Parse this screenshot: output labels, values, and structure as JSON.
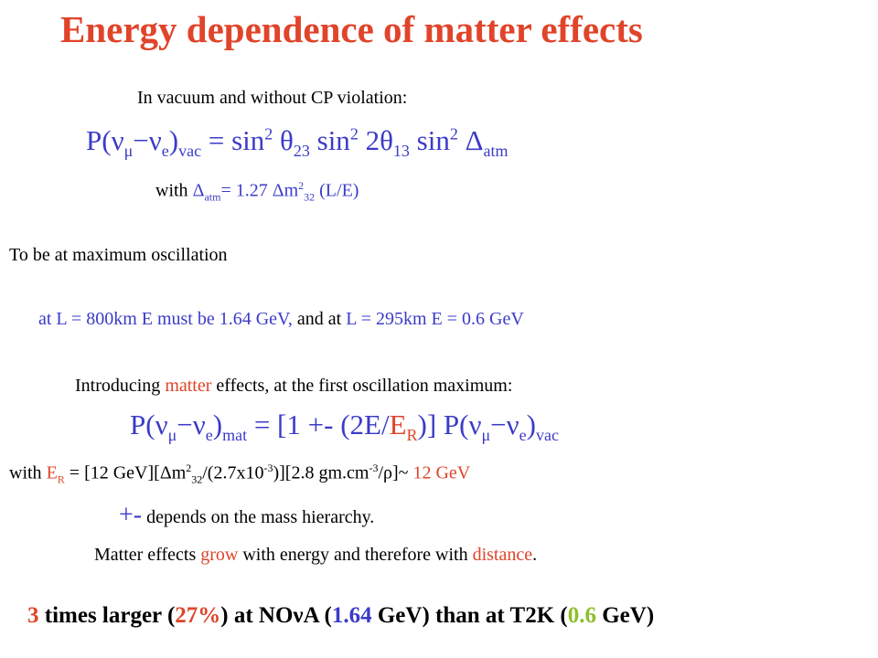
{
  "title": "Energy dependence of matter effects",
  "intro": "In vacuum and without CP violation:",
  "eq1": {
    "P": "P(",
    "nu": "ν",
    "mu": "μ",
    "dash": "−",
    "e": "e",
    "close": ")",
    "vac": "vac",
    "rhs": " = sin",
    "sq": "2",
    "theta": "θ",
    "sub23": "23",
    "sin2": " sin",
    "two_theta": " 2θ",
    "sub13": "13",
    "sin3": " sin",
    "delta": " Δ",
    "atm": "atm"
  },
  "with_line": {
    "a": "with ",
    "delta": "Δ",
    "atm": "atm",
    "b": "= 1.27 ",
    "dm": "Δm",
    "sq": "2",
    "sub": "32",
    "c": " (L/E)"
  },
  "max_osc": "To be at maximum oscillation",
  "line5": {
    "a": "at L = 800km   E  must be 1.64 GeV,",
    "b": "   and at ",
    "c": "L = 295km    E = 0.6 GeV"
  },
  "line6": {
    "a": "Introducing ",
    "b": "matter",
    "c": " effects, at the first oscillation maximum:"
  },
  "eq2": {
    "a": "P(ν",
    "mu": "μ",
    "b": "−ν",
    "e": "e",
    "c": ")",
    "mat": "mat",
    "d": " = [1 +- (2E/",
    "er": "E",
    "R": "R",
    "f": ")] P(ν",
    "mu2": "μ",
    "g": "−ν",
    "e2": "e",
    "h": ")",
    "vac": "vac"
  },
  "line8": {
    "a": "with ",
    "er": "E",
    "R": "R",
    "b": " = [12 GeV][",
    "dm": "Δm",
    "sq": "2",
    "sub": "32",
    "c": "/(2.7x10",
    "exp": "-3",
    "d": ")][2.8 gm.cm",
    "exp2": "-3",
    "e": "/ρ]~",
    "f": " 12 GeV"
  },
  "line9": {
    "pm": "+-",
    "text": " depends on the mass hierarchy."
  },
  "line10": {
    "a": "Matter effects ",
    "b": "grow",
    "c": " with energy and therefore with ",
    "d": "distance",
    "e": "."
  },
  "conclusion": {
    "a": "3",
    "b": " times larger (",
    "c": "27%",
    "d": ") at NOνA (",
    "e": "1.64",
    "f": " GeV) than at T2K (",
    "g": "0.6",
    "h": " GeV)"
  },
  "colors": {
    "text": "#000000",
    "blue": "#3b3bc8",
    "red": "#e0442a",
    "green": "#8fbf2a"
  }
}
